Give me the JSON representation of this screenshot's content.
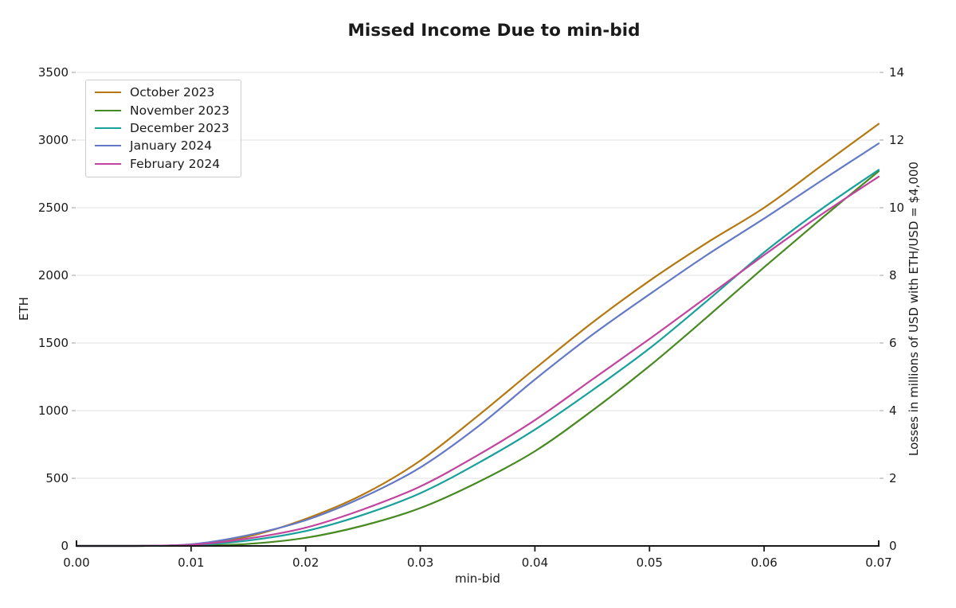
{
  "title": "Missed Income Due to min-bid",
  "chart_data": {
    "type": "line",
    "title": "Missed Income Due to min-bid",
    "xlabel": "min-bid",
    "ylabel_left": "ETH",
    "ylabel_right": "Losses in millions of USD with ETH/USD = $4,000",
    "xlim": [
      0,
      0.07
    ],
    "ylim_left": [
      0,
      3500
    ],
    "ylim_right": [
      0,
      14
    ],
    "grid": "horizontal-only",
    "legend_position": "upper-left",
    "x_ticks": {
      "values": [
        0,
        0.01,
        0.02,
        0.03,
        0.04,
        0.05,
        0.06,
        0.07
      ],
      "labels": [
        "0.00",
        "0.01",
        "0.02",
        "0.03",
        "0.04",
        "0.05",
        "0.06",
        "0.07"
      ]
    },
    "y_left_ticks": {
      "values": [
        0,
        500,
        1000,
        1500,
        2000,
        2500,
        3000,
        3500
      ],
      "labels": [
        "0",
        "500",
        "1000",
        "1500",
        "2000",
        "2500",
        "3000",
        "3500"
      ]
    },
    "y_right_ticks": {
      "values": [
        0,
        2,
        4,
        6,
        8,
        10,
        12,
        14
      ],
      "labels": [
        "0",
        "2",
        "4",
        "6",
        "8",
        "10",
        "12",
        "14"
      ]
    },
    "x": [
      0,
      0.005,
      0.01,
      0.015,
      0.02,
      0.025,
      0.03,
      0.035,
      0.04,
      0.045,
      0.05,
      0.055,
      0.06,
      0.065,
      0.07
    ],
    "series": [
      {
        "name": "October 2023",
        "color": "#b5770f",
        "values": [
          0,
          0,
          10,
          70,
          200,
          380,
          630,
          960,
          1310,
          1650,
          1960,
          2240,
          2500,
          2810,
          3120
        ]
      },
      {
        "name": "November 2023",
        "color": "#478a21",
        "values": [
          0,
          0,
          2,
          15,
          60,
          150,
          280,
          470,
          700,
          1000,
          1330,
          1690,
          2060,
          2420,
          2770
        ]
      },
      {
        "name": "December 2023",
        "color": "#18a09b",
        "values": [
          0,
          0,
          5,
          40,
          110,
          230,
          390,
          610,
          860,
          1150,
          1460,
          1810,
          2170,
          2490,
          2780
        ]
      },
      {
        "name": "January 2024",
        "color": "#6379c7",
        "values": [
          0,
          0,
          12,
          80,
          190,
          360,
          580,
          880,
          1230,
          1560,
          1860,
          2150,
          2420,
          2700,
          2975
        ]
      },
      {
        "name": "February 2024",
        "color": "#c2449e",
        "values": [
          0,
          0,
          8,
          55,
          135,
          270,
          440,
          670,
          930,
          1230,
          1530,
          1840,
          2150,
          2450,
          2730
        ]
      }
    ]
  },
  "styles": {
    "background": "#ffffff",
    "text_color": "#1a1a1a",
    "grid_color": "#e0e0e0",
    "spine_color": "#1a1a1a",
    "minor_tick_color": "#b0b0b0",
    "legend_border": "#cccccc"
  }
}
